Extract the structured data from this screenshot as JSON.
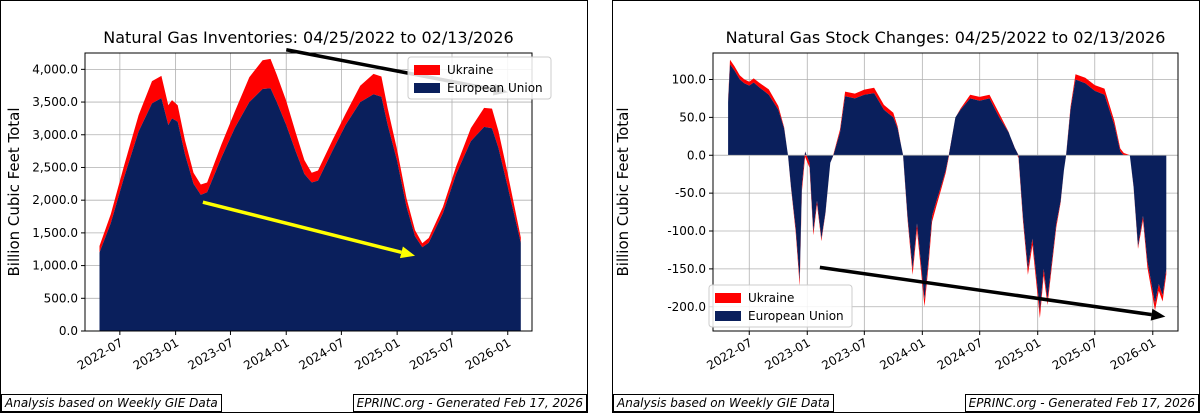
{
  "colors": {
    "ukraine": "#ff0000",
    "eu": "#0a1f5c",
    "grid": "#b0b0b0",
    "arrow_black": "#000000",
    "arrow_yellow": "#ffff00"
  },
  "footer_left": "Analysis based on Weekly GIE Data",
  "footer_right": "EPRINC.org - Generated Feb 17, 2026",
  "chart_data": [
    {
      "type": "area",
      "stacked": true,
      "title": "Natural Gas Inventories: 04/25/2022 to 02/13/2026",
      "ylabel": "Billion Cubic Feet Total",
      "xlabel": "",
      "ylim": [
        0,
        4250
      ],
      "xlim": [
        "2022-03-08",
        "2026-03-22"
      ],
      "yticks": [
        0,
        500,
        1000,
        1500,
        2000,
        2500,
        3000,
        3500,
        4000
      ],
      "yticklabels": [
        "0.0",
        "500.0",
        "1,000.0",
        "1,500.0",
        "2,000.0",
        "2,500.0",
        "3,000.0",
        "3,500.0",
        "4,000.0"
      ],
      "xticks": [
        "2022-07-01",
        "2023-01-01",
        "2023-07-01",
        "2024-01-01",
        "2024-07-01",
        "2025-01-01",
        "2025-07-01",
        "2026-01-01"
      ],
      "xticklabels": [
        "2022-07",
        "2023-01",
        "2023-07",
        "2024-01",
        "2024-07",
        "2025-01",
        "2025-07",
        "2026-01"
      ],
      "grid": true,
      "legend_position": "upper right",
      "series": [
        {
          "name": "European Union",
          "color": "#0a1f5c",
          "points": [
            [
              "2022-04-25",
              1200
            ],
            [
              "2022-06-01",
              1650
            ],
            [
              "2022-07-15",
              2350
            ],
            [
              "2022-09-01",
              3050
            ],
            [
              "2022-10-15",
              3480
            ],
            [
              "2022-11-15",
              3560
            ],
            [
              "2022-12-08",
              3150
            ],
            [
              "2022-12-20",
              3250
            ],
            [
              "2023-01-08",
              3200
            ],
            [
              "2023-02-01",
              2700
            ],
            [
              "2023-03-01",
              2250
            ],
            [
              "2023-03-25",
              2080
            ],
            [
              "2023-04-15",
              2120
            ],
            [
              "2023-06-01",
              2650
            ],
            [
              "2023-07-15",
              3100
            ],
            [
              "2023-09-01",
              3500
            ],
            [
              "2023-10-15",
              3700
            ],
            [
              "2023-11-10",
              3710
            ],
            [
              "2023-12-01",
              3500
            ],
            [
              "2024-01-01",
              3150
            ],
            [
              "2024-02-01",
              2750
            ],
            [
              "2024-03-01",
              2400
            ],
            [
              "2024-03-25",
              2270
            ],
            [
              "2024-04-15",
              2300
            ],
            [
              "2024-06-01",
              2750
            ],
            [
              "2024-07-15",
              3150
            ],
            [
              "2024-09-01",
              3500
            ],
            [
              "2024-10-15",
              3620
            ],
            [
              "2024-11-10",
              3580
            ],
            [
              "2024-12-01",
              3150
            ],
            [
              "2025-01-01",
              2600
            ],
            [
              "2025-02-01",
              1900
            ],
            [
              "2025-03-01",
              1450
            ],
            [
              "2025-03-25",
              1280
            ],
            [
              "2025-04-15",
              1350
            ],
            [
              "2025-06-01",
              1800
            ],
            [
              "2025-07-15",
              2400
            ],
            [
              "2025-09-01",
              2900
            ],
            [
              "2025-10-15",
              3120
            ],
            [
              "2025-11-10",
              3100
            ],
            [
              "2025-12-01",
              2800
            ],
            [
              "2026-01-01",
              2200
            ],
            [
              "2026-02-13",
              1350
            ]
          ]
        },
        {
          "name": "Ukraine",
          "color": "#ff0000",
          "points": [
            [
              "2022-04-25",
              100
            ],
            [
              "2022-07-15",
              180
            ],
            [
              "2022-09-01",
              250
            ],
            [
              "2022-10-15",
              340
            ],
            [
              "2022-11-15",
              340
            ],
            [
              "2022-12-20",
              280
            ],
            [
              "2023-03-01",
              170
            ],
            [
              "2023-04-15",
              150
            ],
            [
              "2023-07-15",
              250
            ],
            [
              "2023-09-01",
              380
            ],
            [
              "2023-10-15",
              440
            ],
            [
              "2023-11-10",
              450
            ],
            [
              "2024-01-01",
              370
            ],
            [
              "2024-03-25",
              150
            ],
            [
              "2024-07-15",
              170
            ],
            [
              "2024-09-01",
              250
            ],
            [
              "2024-10-15",
              310
            ],
            [
              "2024-11-10",
              310
            ],
            [
              "2025-01-01",
              170
            ],
            [
              "2025-03-25",
              60
            ],
            [
              "2025-07-15",
              120
            ],
            [
              "2025-09-01",
              200
            ],
            [
              "2025-10-15",
              290
            ],
            [
              "2025-11-10",
              300
            ],
            [
              "2026-01-01",
              200
            ],
            [
              "2026-02-13",
              80
            ]
          ]
        }
      ],
      "annotations": [
        {
          "type": "arrow",
          "color": "black",
          "from": [
            "2024-01-01",
            4300
          ],
          "to": [
            "2026-01-01",
            3650
          ]
        },
        {
          "type": "arrow",
          "color": "yellow",
          "from": [
            "2023-04-01",
            1970
          ],
          "to": [
            "2025-03-01",
            1150
          ]
        }
      ]
    },
    {
      "type": "area",
      "stacked": true,
      "title": "Natural Gas Stock Changes: 04/25/2022 to 02/13/2026",
      "ylabel": "Billion Cubic Feet Total",
      "xlabel": "",
      "ylim": [
        -232,
        135
      ],
      "xlim": [
        "2022-03-08",
        "2026-03-22"
      ],
      "yticks": [
        100,
        50,
        0,
        -50,
        -100,
        -150,
        -200
      ],
      "yticklabels": [
        "100.0",
        "50.0",
        "0.0",
        "-50.0",
        "-100.0",
        "-150.0",
        "-200.0"
      ],
      "xticks": [
        "2022-07-01",
        "2023-01-01",
        "2023-07-01",
        "2024-01-01",
        "2024-07-01",
        "2025-01-01",
        "2025-07-01",
        "2026-01-01"
      ],
      "xticklabels": [
        "2022-07",
        "2023-01",
        "2023-07",
        "2024-01",
        "2024-07",
        "2025-01",
        "2025-07",
        "2026-01"
      ],
      "grid": true,
      "legend_position": "lower left",
      "series": [
        {
          "name": "European Union",
          "color": "#0a1f5c",
          "points": [
            [
              "2022-04-25",
              70
            ],
            [
              "2022-05-01",
              120
            ],
            [
              "2022-05-15",
              112
            ],
            [
              "2022-06-01",
              100
            ],
            [
              "2022-06-15",
              95
            ],
            [
              "2022-07-01",
              92
            ],
            [
              "2022-07-15",
              96
            ],
            [
              "2022-08-01",
              90
            ],
            [
              "2022-09-01",
              80
            ],
            [
              "2022-10-01",
              60
            ],
            [
              "2022-10-20",
              35
            ],
            [
              "2022-11-01",
              0
            ],
            [
              "2022-11-10",
              -40
            ],
            [
              "2022-11-25",
              -95
            ],
            [
              "2022-12-08",
              -165
            ],
            [
              "2022-12-15",
              -40
            ],
            [
              "2022-12-25",
              5
            ],
            [
              "2023-01-08",
              -10
            ],
            [
              "2023-01-20",
              -100
            ],
            [
              "2023-02-01",
              -60
            ],
            [
              "2023-02-15",
              -110
            ],
            [
              "2023-02-28",
              -75
            ],
            [
              "2023-03-15",
              -10
            ],
            [
              "2023-03-25",
              0
            ],
            [
              "2023-04-15",
              30
            ],
            [
              "2023-05-01",
              78
            ],
            [
              "2023-06-01",
              75
            ],
            [
              "2023-07-01",
              80
            ],
            [
              "2023-08-01",
              82
            ],
            [
              "2023-09-01",
              60
            ],
            [
              "2023-10-01",
              50
            ],
            [
              "2023-10-15",
              35
            ],
            [
              "2023-11-01",
              0
            ],
            [
              "2023-11-15",
              -80
            ],
            [
              "2023-12-01",
              -150
            ],
            [
              "2023-12-15",
              -90
            ],
            [
              "2024-01-08",
              -190
            ],
            [
              "2024-01-20",
              -140
            ],
            [
              "2024-02-01",
              -80
            ],
            [
              "2024-02-15",
              -60
            ],
            [
              "2024-03-01",
              -40
            ],
            [
              "2024-03-15",
              -20
            ],
            [
              "2024-03-25",
              0
            ],
            [
              "2024-04-15",
              50
            ],
            [
              "2024-05-01",
              60
            ],
            [
              "2024-06-01",
              75
            ],
            [
              "2024-07-01",
              72
            ],
            [
              "2024-08-01",
              75
            ],
            [
              "2024-09-01",
              50
            ],
            [
              "2024-10-01",
              30
            ],
            [
              "2024-10-20",
              10
            ],
            [
              "2024-11-01",
              0
            ],
            [
              "2024-11-15",
              -80
            ],
            [
              "2024-12-01",
              -150
            ],
            [
              "2024-12-15",
              -110
            ],
            [
              "2025-01-08",
              -205
            ],
            [
              "2025-01-20",
              -150
            ],
            [
              "2025-02-01",
              -190
            ],
            [
              "2025-02-15",
              -140
            ],
            [
              "2025-03-01",
              -90
            ],
            [
              "2025-03-15",
              -60
            ],
            [
              "2025-03-25",
              -20
            ],
            [
              "2025-04-01",
              0
            ],
            [
              "2025-04-15",
              60
            ],
            [
              "2025-05-01",
              100
            ],
            [
              "2025-06-01",
              95
            ],
            [
              "2025-07-01",
              85
            ],
            [
              "2025-08-01",
              80
            ],
            [
              "2025-09-01",
              40
            ],
            [
              "2025-09-20",
              5
            ],
            [
              "2025-10-01",
              0
            ],
            [
              "2025-10-20",
              0
            ],
            [
              "2025-11-01",
              -40
            ],
            [
              "2025-11-15",
              -120
            ],
            [
              "2025-12-01",
              -80
            ],
            [
              "2025-12-15",
              -140
            ],
            [
              "2026-01-08",
              -195
            ],
            [
              "2026-01-20",
              -170
            ],
            [
              "2026-02-01",
              -185
            ],
            [
              "2026-02-13",
              -150
            ]
          ]
        },
        {
          "name": "Ukraine",
          "color": "#ff0000",
          "points": [
            [
              "2022-04-25",
              4
            ],
            [
              "2022-05-01",
              6
            ],
            [
              "2022-07-01",
              5
            ],
            [
              "2022-09-01",
              7
            ],
            [
              "2022-10-01",
              5
            ],
            [
              "2022-11-10",
              -2
            ],
            [
              "2022-12-08",
              -8
            ],
            [
              "2023-02-01",
              -5
            ],
            [
              "2023-05-01",
              6
            ],
            [
              "2023-08-01",
              7
            ],
            [
              "2023-10-01",
              6
            ],
            [
              "2023-12-01",
              -8
            ],
            [
              "2024-01-08",
              -10
            ],
            [
              "2024-03-01",
              -5
            ],
            [
              "2024-06-01",
              5
            ],
            [
              "2024-09-01",
              5
            ],
            [
              "2024-12-01",
              -8
            ],
            [
              "2025-01-08",
              -10
            ],
            [
              "2025-03-01",
              -5
            ],
            [
              "2025-05-01",
              7
            ],
            [
              "2025-08-01",
              8
            ],
            [
              "2025-10-01",
              3
            ],
            [
              "2025-12-15",
              -8
            ],
            [
              "2026-01-08",
              -10
            ],
            [
              "2026-02-13",
              -7
            ]
          ]
        }
      ],
      "annotations": [
        {
          "type": "arrow",
          "color": "black",
          "from": [
            "2023-02-10",
            -148
          ],
          "to": [
            "2026-02-10",
            -213
          ]
        }
      ]
    }
  ]
}
